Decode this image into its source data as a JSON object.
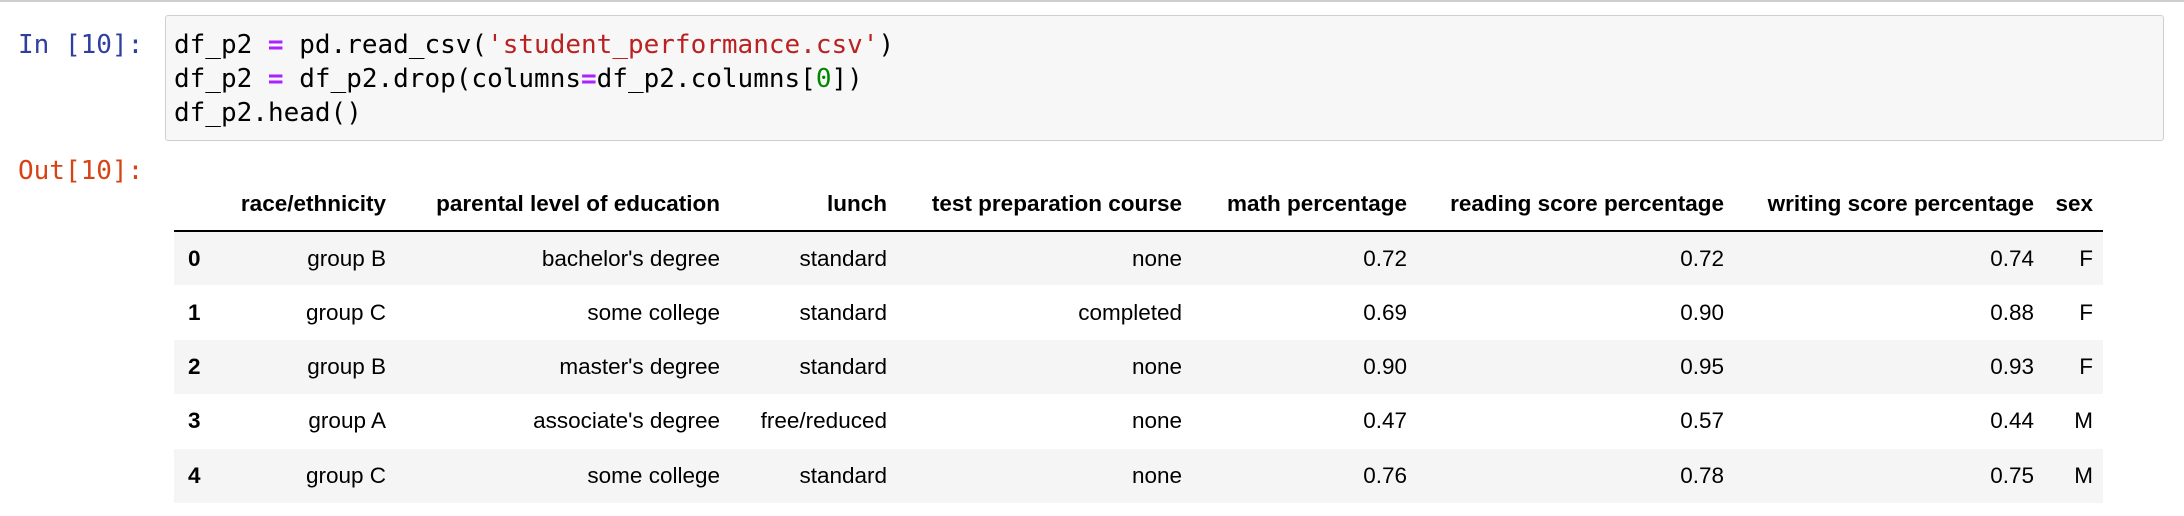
{
  "cell": {
    "input_prompt": "In [10]:",
    "output_prompt": "Out[10]:",
    "code_lines": [
      [
        {
          "text": "df_p2 ",
          "type": "plain"
        },
        {
          "text": "=",
          "type": "op"
        },
        {
          "text": " pd",
          "type": "plain"
        },
        {
          "text": ".",
          "type": "plain"
        },
        {
          "text": "read_csv(",
          "type": "plain"
        },
        {
          "text": "'student_performance.csv'",
          "type": "str"
        },
        {
          "text": ")",
          "type": "plain"
        }
      ],
      [
        {
          "text": "df_p2 ",
          "type": "plain"
        },
        {
          "text": "=",
          "type": "op"
        },
        {
          "text": " df_p2",
          "type": "plain"
        },
        {
          "text": ".",
          "type": "plain"
        },
        {
          "text": "drop(columns",
          "type": "plain"
        },
        {
          "text": "=",
          "type": "op"
        },
        {
          "text": "df_p2",
          "type": "plain"
        },
        {
          "text": ".",
          "type": "plain"
        },
        {
          "text": "columns[",
          "type": "plain"
        },
        {
          "text": "0",
          "type": "num"
        },
        {
          "text": "])",
          "type": "plain"
        }
      ],
      [
        {
          "text": "df_p2",
          "type": "plain"
        },
        {
          "text": ".",
          "type": "plain"
        },
        {
          "text": "head()",
          "type": "plain"
        }
      ]
    ],
    "colors": {
      "input_prompt": "#303f9f",
      "output_prompt": "#d84315",
      "operator": "#aa22ff",
      "string": "#ba2121",
      "number": "#008800"
    }
  },
  "dataframe": {
    "columns": [
      "",
      "race/ethnicity",
      "parental level of education",
      "lunch",
      "test preparation course",
      "math percentage",
      "reading score percentage",
      "writing score percentage",
      "sex"
    ],
    "rows": [
      [
        "0",
        "group B",
        "bachelor's degree",
        "standard",
        "none",
        "0.72",
        "0.72",
        "0.74",
        "F"
      ],
      [
        "1",
        "group C",
        "some college",
        "standard",
        "completed",
        "0.69",
        "0.90",
        "0.88",
        "F"
      ],
      [
        "2",
        "group B",
        "master's degree",
        "standard",
        "none",
        "0.90",
        "0.95",
        "0.93",
        "F"
      ],
      [
        "3",
        "group A",
        "associate's degree",
        "free/reduced",
        "none",
        "0.47",
        "0.57",
        "0.44",
        "M"
      ],
      [
        "4",
        "group C",
        "some college",
        "standard",
        "none",
        "0.76",
        "0.78",
        "0.75",
        "M"
      ]
    ]
  }
}
